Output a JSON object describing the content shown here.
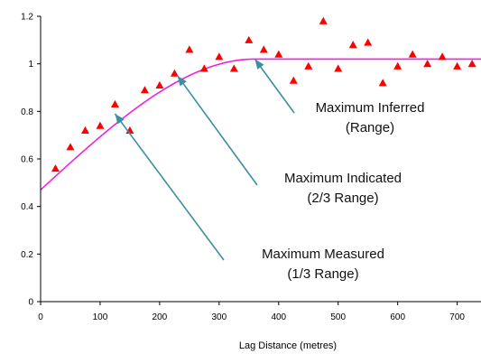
{
  "chart_data": {
    "type": "scatter",
    "xlabel": "Lag Distance (metres)",
    "ylabel": "",
    "xlim": [
      0,
      740
    ],
    "ylim": [
      0,
      1.2
    ],
    "xticks": [
      0,
      100,
      200,
      300,
      400,
      500,
      600,
      700
    ],
    "yticks": [
      0,
      0.2,
      0.4,
      0.6,
      0.8,
      1,
      1.2
    ],
    "ytick_labels": [
      "0",
      "0.2",
      "0.4",
      "0.6",
      "0.8",
      "1",
      "1.2"
    ],
    "grid": false,
    "series": [
      {
        "kind": "points",
        "marker": "triangle",
        "color": "#ff0000",
        "x": [
          25,
          50,
          75,
          100,
          125,
          150,
          175,
          200,
          225,
          250,
          275,
          300,
          325,
          350,
          375,
          400,
          425,
          450,
          475,
          500,
          525,
          550,
          575,
          600,
          625,
          650,
          675,
          700,
          725
        ],
        "y": [
          0.56,
          0.65,
          0.72,
          0.74,
          0.83,
          0.72,
          0.89,
          0.91,
          0.96,
          1.06,
          0.98,
          1.03,
          0.98,
          1.1,
          1.06,
          1.04,
          0.93,
          0.99,
          1.18,
          0.98,
          1.08,
          1.09,
          0.92,
          0.99,
          1.04,
          1.0,
          1.03,
          0.99,
          1.0
        ]
      },
      {
        "kind": "model",
        "model": "spherical",
        "color": "#ee22dd",
        "nugget": 0.47,
        "sill": 1.02,
        "range": 360,
        "x_end": 740
      }
    ],
    "annotations": [
      {
        "lines": [
          "Maximum Inferred",
          "(Range)"
        ],
        "arrow_to": [
          360,
          1.02
        ]
      },
      {
        "lines": [
          "Maximum Indicated",
          "(2/3 Range)"
        ],
        "arrow_to": [
          230,
          0.95
        ]
      },
      {
        "lines": [
          "Maximum Measured",
          "(1/3 Range)"
        ],
        "arrow_to": [
          125,
          0.79
        ]
      }
    ],
    "arrow_color": "#3a8fa0"
  }
}
